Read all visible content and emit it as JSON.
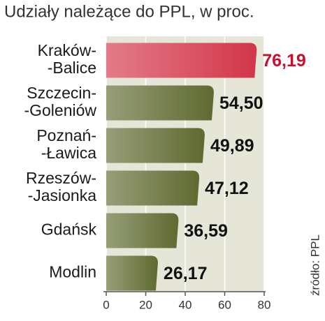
{
  "chart_data": {
    "type": "bar",
    "orientation": "horizontal",
    "title": "Udziały należące do PPL, w proc.",
    "source": "źródło: PPL",
    "categories": [
      [
        "Kraków-",
        "-Balice"
      ],
      [
        "Szczecin-",
        "-Goleniów"
      ],
      [
        "Poznań-",
        "-Ławica"
      ],
      [
        "Rzeszów-",
        "-Jasionka"
      ],
      [
        "Gdańsk"
      ],
      [
        "Modlin"
      ]
    ],
    "values": [
      76.19,
      54.5,
      49.89,
      47.12,
      36.59,
      26.17
    ],
    "value_labels": [
      "76,19",
      "54,50",
      "49,89",
      "47,12",
      "36,59",
      "26,17"
    ],
    "colors": [
      "#d2364a",
      "#5f6a30",
      "#5f6a30",
      "#5f6a30",
      "#5f6a30",
      "#5f6a30"
    ],
    "label_colors": [
      "#c8102e",
      "#111111",
      "#111111",
      "#111111",
      "#111111",
      "#111111"
    ],
    "xlim": [
      0,
      80
    ],
    "xticks": [
      0,
      20,
      40,
      60,
      80
    ],
    "grid": true
  }
}
